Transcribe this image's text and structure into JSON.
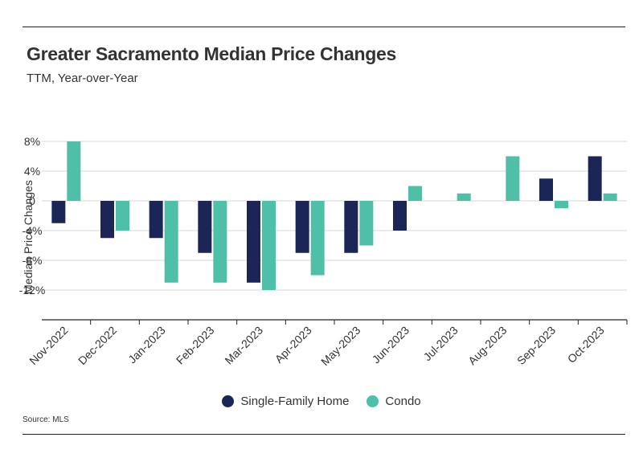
{
  "title": "Greater Sacramento Median Price Changes",
  "subtitle": "TTM, Year-over-Year",
  "source": "Source: MLS",
  "colors": {
    "single_family": "#1b2556",
    "condo": "#4fbfa8"
  },
  "chart_data": {
    "type": "bar",
    "title": "Greater Sacramento Median Price Changes",
    "subtitle": "TTM, Year-over-Year",
    "ylabel": "Median Price Changes",
    "xlabel": "",
    "ylim": [
      -16,
      8
    ],
    "yticks": [
      8,
      4,
      0,
      -4,
      -8,
      -12
    ],
    "ytick_labels": [
      "8%",
      "4%",
      "0",
      "-4%",
      "-8%",
      "-12%"
    ],
    "categories": [
      "Nov-2022",
      "Dec-2022",
      "Jan-2023",
      "Feb-2023",
      "Mar-2023",
      "Apr-2023",
      "May-2023",
      "Jun-2023",
      "Jul-2023",
      "Aug-2023",
      "Sep-2023",
      "Oct-2023"
    ],
    "series": [
      {
        "name": "Single-Family Home",
        "color": "#1b2556",
        "values": [
          -3,
          -5,
          -5,
          -7,
          -11,
          -7,
          -7,
          -4,
          0,
          0,
          3,
          6
        ]
      },
      {
        "name": "Condo",
        "color": "#4fbfa8",
        "values": [
          8,
          -4,
          -11,
          -11,
          -12,
          -10,
          -6,
          2,
          1,
          6,
          -1,
          1
        ]
      }
    ],
    "grid": true,
    "legend_position": "bottom"
  }
}
